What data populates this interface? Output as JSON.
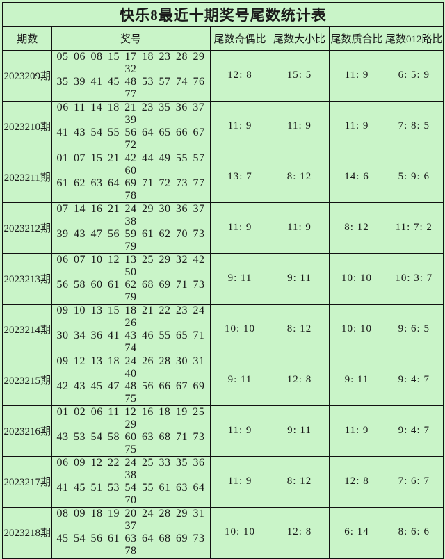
{
  "title": "快乐8最近十期奖号尾数统计表",
  "colors": {
    "background": "#c9f4c8",
    "border": "#111111",
    "text": "#1a1a1a"
  },
  "headers": [
    "期数",
    "奖号",
    "尾数奇偶比",
    "尾数大小比",
    "尾数质合比",
    "尾数012路比"
  ],
  "rows": [
    {
      "period": "2023209期",
      "numbers": [
        "05 06 08 15 17 18 23 28 29 32",
        "35 39 41 45 48 53 57 74 76 77"
      ],
      "odd_even": "12: 8",
      "big_small": "15: 5",
      "prime_composite": "11: 9",
      "road_012": "6: 5: 9"
    },
    {
      "period": "2023210期",
      "numbers": [
        "06 11 14 18 21 23 35 36 37 39",
        "41 43 54 55 56 64 65 66 67 72"
      ],
      "odd_even": "11: 9",
      "big_small": "11: 9",
      "prime_composite": "11: 9",
      "road_012": "7: 8: 5"
    },
    {
      "period": "2023211期",
      "numbers": [
        "01 07 15 21 42 44 49 55 57 60",
        "61 62 63 64 69 71 72 73 77 78"
      ],
      "odd_even": "13: 7",
      "big_small": "8: 12",
      "prime_composite": "14: 6",
      "road_012": "5: 9: 6"
    },
    {
      "period": "2023212期",
      "numbers": [
        "07 14 16 21 24 29 30 36 37 38",
        "39 43 47 56 59 61 62 70 73 79"
      ],
      "odd_even": "11: 9",
      "big_small": "11: 9",
      "prime_composite": "8: 12",
      "road_012": "11: 7: 2"
    },
    {
      "period": "2023213期",
      "numbers": [
        "06 07 10 12 13 25 29 32 42 50",
        "56 58 60 61 62 68 69 71 73 79"
      ],
      "odd_even": "9: 11",
      "big_small": "9: 11",
      "prime_composite": "10: 10",
      "road_012": "10: 3: 7"
    },
    {
      "period": "2023214期",
      "numbers": [
        "09 10 13 15 18 21 22 23 24 26",
        "30 34 36 41 43 46 55 65 71 74"
      ],
      "odd_even": "10: 10",
      "big_small": "8: 12",
      "prime_composite": "10: 10",
      "road_012": "9: 6: 5"
    },
    {
      "period": "2023215期",
      "numbers": [
        "09 12 13 18 24 26 28 30 31 40",
        "42 43 45 47 48 56 66 67 69 75"
      ],
      "odd_even": "9: 11",
      "big_small": "12: 8",
      "prime_composite": "9: 11",
      "road_012": "9: 4: 7"
    },
    {
      "period": "2023216期",
      "numbers": [
        "01 02 06 11 12 16 18 19 25 29",
        "43 53 54 58 60 63 68 71 73 75"
      ],
      "odd_even": "11: 9",
      "big_small": "9: 11",
      "prime_composite": "11: 9",
      "road_012": "9: 4: 7"
    },
    {
      "period": "2023217期",
      "numbers": [
        "06 09 12 22 24 25 33 35 36 38",
        "41 45 51 53 54 55 61 63 64 70"
      ],
      "odd_even": "11: 9",
      "big_small": "8: 12",
      "prime_composite": "12: 8",
      "road_012": "7: 6: 7"
    },
    {
      "period": "2023218期",
      "numbers": [
        "08 09 18 19 20 24 28 29 31 37",
        "45 54 56 61 63 64 68 69 73 78"
      ],
      "odd_even": "10: 10",
      "big_small": "12: 8",
      "prime_composite": "6: 14",
      "road_012": "8: 6: 6"
    }
  ],
  "chart_data": {
    "type": "table",
    "title": "快乐8最近十期奖号尾数统计表",
    "columns": [
      "期数",
      "奖号",
      "尾数奇偶比",
      "尾数大小比",
      "尾数质合比",
      "尾数012路比"
    ],
    "rows": [
      [
        "2023209期",
        "05 06 08 15 17 18 23 28 29 32 35 39 41 45 48 53 57 74 76 77",
        "12: 8",
        "15: 5",
        "11: 9",
        "6: 5: 9"
      ],
      [
        "2023210期",
        "06 11 14 18 21 23 35 36 37 39 41 43 54 55 56 64 65 66 67 72",
        "11: 9",
        "11: 9",
        "11: 9",
        "7: 8: 5"
      ],
      [
        "2023211期",
        "01 07 15 21 42 44 49 55 57 60 61 62 63 64 69 71 72 73 77 78",
        "13: 7",
        "8: 12",
        "14: 6",
        "5: 9: 6"
      ],
      [
        "2023212期",
        "07 14 16 21 24 29 30 36 37 38 39 43 47 56 59 61 62 70 73 79",
        "11: 9",
        "11: 9",
        "8: 12",
        "11: 7: 2"
      ],
      [
        "2023213期",
        "06 07 10 12 13 25 29 32 42 50 56 58 60 61 62 68 69 71 73 79",
        "9: 11",
        "9: 11",
        "10: 10",
        "10: 3: 7"
      ],
      [
        "2023214期",
        "09 10 13 15 18 21 22 23 24 26 30 34 36 41 43 46 55 65 71 74",
        "10: 10",
        "8: 12",
        "10: 10",
        "9: 6: 5"
      ],
      [
        "2023215期",
        "09 12 13 18 24 26 28 30 31 40 42 43 45 47 48 56 66 67 69 75",
        "9: 11",
        "12: 8",
        "9: 11",
        "9: 4: 7"
      ],
      [
        "2023216期",
        "01 02 06 11 12 16 18 19 25 29 43 53 54 58 60 63 68 71 73 75",
        "11: 9",
        "9: 11",
        "11: 9",
        "9: 4: 7"
      ],
      [
        "2023217期",
        "06 09 12 22 24 25 33 35 36 38 41 45 51 53 54 55 61 63 64 70",
        "11: 9",
        "8: 12",
        "12: 8",
        "7: 6: 7"
      ],
      [
        "2023218期",
        "08 09 18 19 20 24 28 29 31 37 45 54 56 61 63 64 68 69 73 78",
        "10: 10",
        "12: 8",
        "6: 14",
        "8: 6: 6"
      ]
    ]
  }
}
